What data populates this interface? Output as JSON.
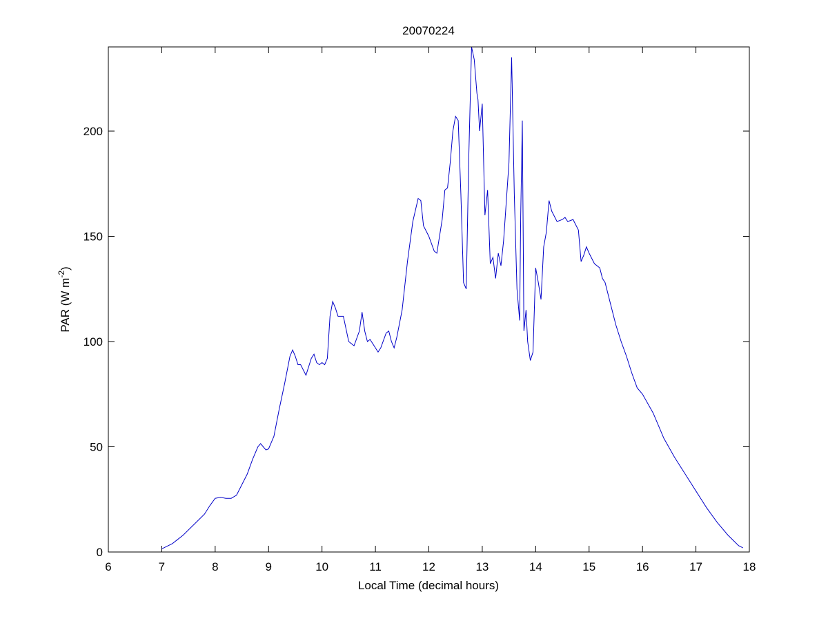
{
  "chart_data": {
    "type": "line",
    "title": "20070224",
    "xlabel": "Local Time (decimal hours)",
    "ylabel": "PAR (W m",
    "ylabel_sup": "-2",
    "ylabel_end": ")",
    "color": "#0000c8",
    "xlim": [
      6,
      18
    ],
    "xticks": [
      6,
      7,
      8,
      9,
      10,
      11,
      12,
      13,
      14,
      15,
      16,
      17,
      18
    ],
    "ylim": [
      0,
      240
    ],
    "yticks": [
      0,
      50,
      100,
      150,
      200
    ],
    "x": [
      7.0,
      7.2,
      7.4,
      7.6,
      7.8,
      7.9,
      8.0,
      8.1,
      8.2,
      8.3,
      8.4,
      8.5,
      8.6,
      8.7,
      8.8,
      8.85,
      8.9,
      8.95,
      9.0,
      9.1,
      9.2,
      9.3,
      9.4,
      9.45,
      9.5,
      9.55,
      9.6,
      9.7,
      9.8,
      9.85,
      9.9,
      9.95,
      10.0,
      10.05,
      10.1,
      10.15,
      10.2,
      10.25,
      10.3,
      10.4,
      10.5,
      10.6,
      10.7,
      10.75,
      10.8,
      10.85,
      10.9,
      11.0,
      11.05,
      11.1,
      11.2,
      11.25,
      11.3,
      11.35,
      11.4,
      11.5,
      11.6,
      11.7,
      11.8,
      11.85,
      11.9,
      12.0,
      12.1,
      12.15,
      12.2,
      12.25,
      12.3,
      12.35,
      12.4,
      12.45,
      12.5,
      12.55,
      12.6,
      12.65,
      12.7,
      12.75,
      12.8,
      12.85,
      12.9,
      12.92,
      12.95,
      13.0,
      13.05,
      13.1,
      13.15,
      13.2,
      13.25,
      13.3,
      13.35,
      13.4,
      13.5,
      13.55,
      13.6,
      13.65,
      13.7,
      13.72,
      13.75,
      13.78,
      13.82,
      13.85,
      13.9,
      13.95,
      14.0,
      14.05,
      14.1,
      14.15,
      14.2,
      14.25,
      14.3,
      14.4,
      14.5,
      14.55,
      14.6,
      14.7,
      14.8,
      14.85,
      14.9,
      14.95,
      15.0,
      15.1,
      15.2,
      15.25,
      15.3,
      15.4,
      15.5,
      15.6,
      15.7,
      15.8,
      15.9,
      16.0,
      16.2,
      16.4,
      16.6,
      16.8,
      17.0,
      17.2,
      17.4,
      17.6,
      17.8,
      17.88
    ],
    "values": [
      1.5,
      4,
      8,
      13,
      18,
      22,
      25.5,
      26,
      25.5,
      25.5,
      27,
      32,
      37,
      44,
      50,
      51.5,
      50,
      48.5,
      49,
      55,
      68,
      80,
      93,
      96,
      93,
      89,
      89,
      84,
      92,
      94,
      90,
      89,
      90,
      89,
      92,
      112,
      119,
      116,
      112,
      112,
      100,
      98,
      105,
      114,
      105,
      100,
      101,
      97,
      95,
      97,
      104,
      105,
      100,
      97,
      102,
      115,
      138,
      157,
      168,
      167,
      155,
      150,
      143,
      142,
      150,
      158,
      172,
      173,
      185,
      200,
      207,
      205,
      170,
      128,
      125,
      190,
      240,
      234,
      218,
      215,
      200,
      213,
      160,
      172,
      137,
      140,
      130,
      142,
      136,
      148,
      185,
      235,
      170,
      125,
      110,
      160,
      205,
      105,
      115,
      100,
      91,
      95,
      135,
      128,
      120,
      145,
      152,
      167,
      162,
      157,
      158,
      159,
      157,
      158,
      153,
      138,
      141,
      145,
      142,
      137,
      135,
      130,
      128,
      118,
      108,
      100,
      93,
      85,
      78,
      75,
      66,
      54,
      45,
      37,
      29,
      21,
      14,
      8,
      3,
      2
    ]
  }
}
